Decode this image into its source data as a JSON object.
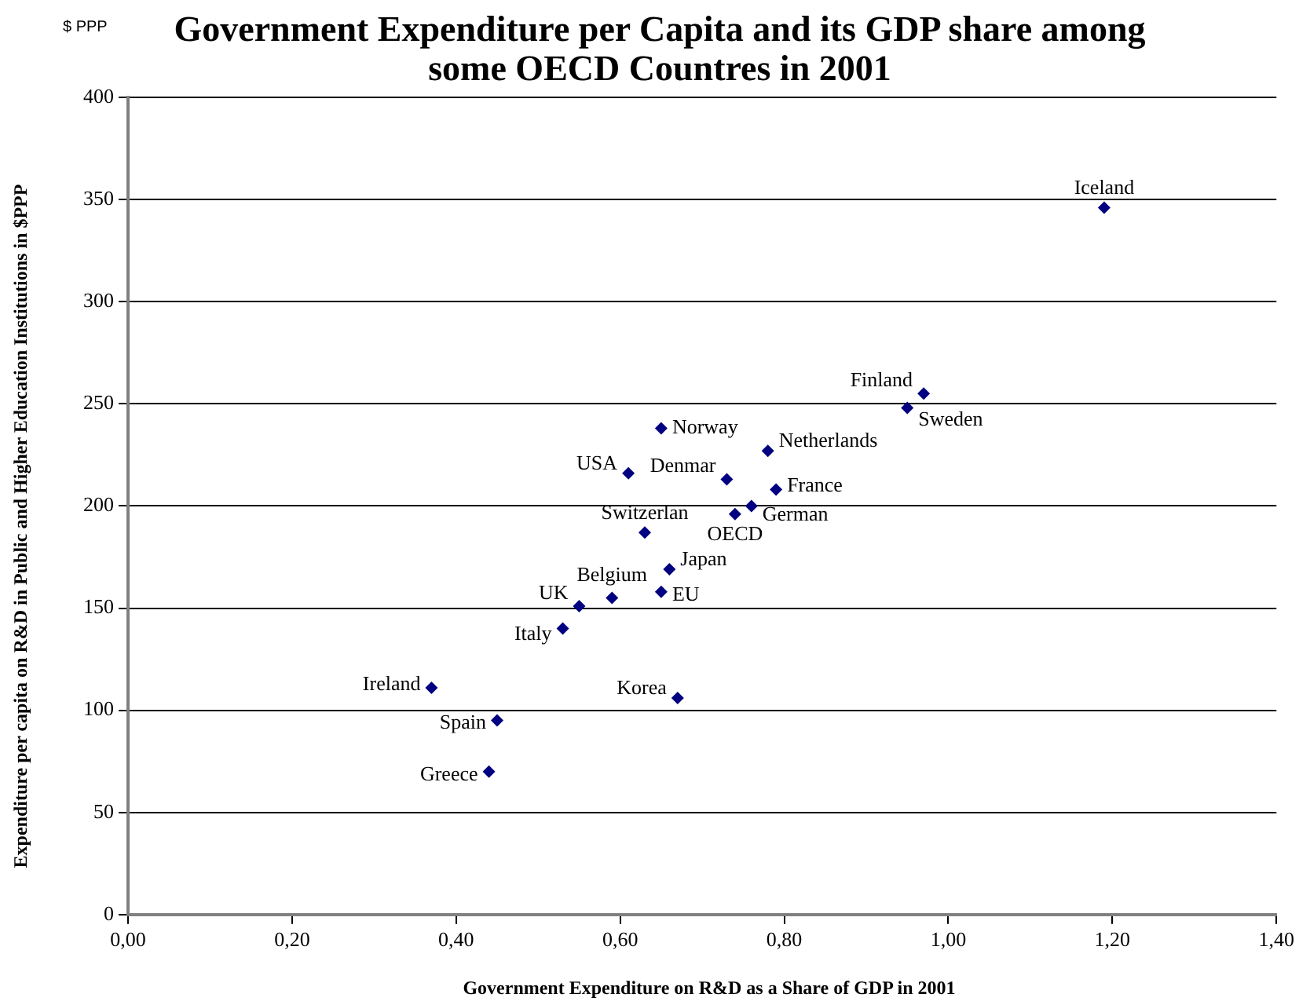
{
  "chart_data": {
    "type": "scatter",
    "title": "Government Expenditure per Capita and its GDP share among some OECD Countres in 2001",
    "xlabel": "Government Expenditure on R&D as a Share of GDP in 2001",
    "ylabel": "Expenditure per capita on R&D in Public and Higher Education Institutions  in $PPP",
    "annotations": [
      "$ PPP"
    ],
    "series": [
      {
        "color": "#000080",
        "x": [
          1.19,
          0.97,
          0.95,
          0.65,
          0.61,
          0.73,
          0.78,
          0.79,
          0.76,
          0.63,
          0.66,
          0.65,
          0.59,
          0.55,
          0.53,
          0.74,
          0.37,
          0.67,
          0.45,
          0.44
        ],
        "values": [
          346,
          255,
          248,
          238,
          216,
          213,
          227,
          208,
          200,
          187,
          169,
          158,
          155,
          151,
          140,
          196,
          111,
          106,
          95,
          70
        ],
        "value_labels": [
          "Iceland",
          "Finland",
          "Sweden",
          "Norway",
          "USA",
          "Denmar",
          "Netherlands",
          "France",
          "German",
          "Switzerlan",
          "Japan",
          "EU",
          "Belgium",
          "UK",
          "Italy",
          "OECD",
          "Ireland",
          "Korea",
          "Spain",
          "Greece"
        ]
      }
    ],
    "xlim": [
      0,
      1.4
    ],
    "xticks": [
      {
        "value": 0,
        "label": "0,00"
      },
      {
        "value": 0.2,
        "label": "0,20"
      },
      {
        "value": 0.4,
        "label": "0,40"
      },
      {
        "value": 0.6,
        "label": "0,60"
      },
      {
        "value": 0.8,
        "label": "0,80"
      },
      {
        "value": 1,
        "label": "1,00"
      },
      {
        "value": 1.2,
        "label": "1,20"
      },
      {
        "value": 1.4,
        "label": "1,40"
      }
    ],
    "ylim": [
      0,
      400
    ],
    "yticks": [
      0,
      50,
      100,
      150,
      200,
      250,
      300,
      350,
      400
    ],
    "grid": "y",
    "legend": false,
    "marker": "diamond"
  }
}
